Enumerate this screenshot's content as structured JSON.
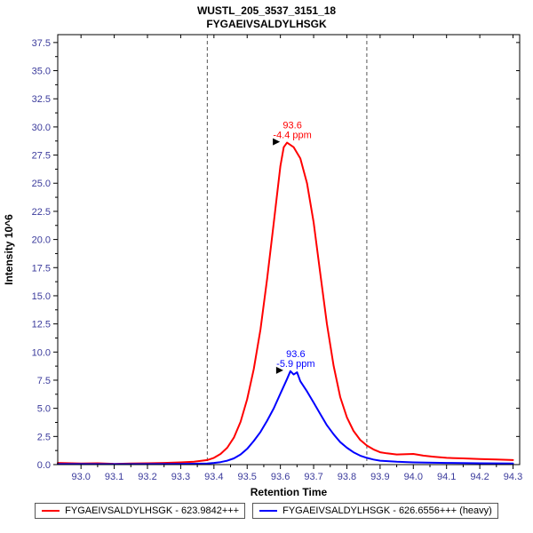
{
  "chart_data": {
    "type": "line",
    "title": "WUSTL_205_3537_3151_18",
    "subtitle": "FYGAEIVSALDYLHSGK",
    "xlabel": "Retention Time",
    "ylabel": "Intensity 10^6",
    "xlim": [
      92.93,
      94.32
    ],
    "ylim": [
      0,
      38.2
    ],
    "grid": false,
    "legend_position": "bottom",
    "tick_label_color": "#3b3b9c",
    "boundary_color": "#555555",
    "integration_boundaries": [
      93.38,
      93.86
    ],
    "x_ticks": [
      93.0,
      93.1,
      93.2,
      93.3,
      93.4,
      93.5,
      93.6,
      93.7,
      93.8,
      93.9,
      94.0,
      94.1,
      94.2,
      94.3
    ],
    "y_ticks": [
      0.0,
      2.5,
      5.0,
      7.5,
      10.0,
      12.5,
      15.0,
      17.5,
      20.0,
      22.5,
      25.0,
      27.5,
      30.0,
      32.5,
      35.0,
      37.5
    ],
    "series": [
      {
        "name": "FYGAEIVSALDYLHSGK - 623.9842+++",
        "color": "#ff0000",
        "annotation": {
          "x": 93.62,
          "y": 28.6,
          "rt_label": "93.6",
          "ppm_label": "-4.4 ppm"
        },
        "x": [
          92.93,
          93.0,
          93.05,
          93.1,
          93.15,
          93.2,
          93.25,
          93.3,
          93.34,
          93.38,
          93.4,
          93.42,
          93.44,
          93.46,
          93.48,
          93.5,
          93.52,
          93.54,
          93.56,
          93.58,
          93.6,
          93.61,
          93.62,
          93.64,
          93.66,
          93.68,
          93.7,
          93.72,
          93.74,
          93.76,
          93.78,
          93.8,
          93.82,
          93.84,
          93.86,
          93.88,
          93.9,
          93.92,
          93.95,
          94.0,
          94.03,
          94.06,
          94.1,
          94.15,
          94.2,
          94.25,
          94.3
        ],
        "y": [
          0.15,
          0.1,
          0.12,
          0.06,
          0.1,
          0.12,
          0.15,
          0.2,
          0.25,
          0.4,
          0.6,
          0.95,
          1.5,
          2.4,
          3.8,
          5.8,
          8.5,
          12.0,
          16.5,
          21.5,
          26.5,
          28.2,
          28.6,
          28.2,
          27.2,
          25.0,
          21.5,
          17.0,
          12.5,
          8.8,
          6.0,
          4.2,
          3.0,
          2.2,
          1.7,
          1.35,
          1.1,
          1.0,
          0.9,
          0.95,
          0.8,
          0.7,
          0.6,
          0.55,
          0.5,
          0.45,
          0.4
        ]
      },
      {
        "name": "FYGAEIVSALDYLHSGK - 626.6556+++ (heavy)",
        "color": "#0000ff",
        "annotation": {
          "x": 93.63,
          "y": 8.3,
          "rt_label": "93.6",
          "ppm_label": "-5.9 ppm"
        },
        "x": [
          92.93,
          93.0,
          93.1,
          93.2,
          93.3,
          93.38,
          93.4,
          93.42,
          93.44,
          93.46,
          93.48,
          93.5,
          93.52,
          93.54,
          93.56,
          93.58,
          93.6,
          93.62,
          93.63,
          93.64,
          93.65,
          93.66,
          93.68,
          93.7,
          93.72,
          93.74,
          93.76,
          93.78,
          93.8,
          93.82,
          93.84,
          93.86,
          93.88,
          93.9,
          93.95,
          94.0,
          94.1,
          94.2,
          94.3
        ],
        "y": [
          0.05,
          0.05,
          0.04,
          0.05,
          0.06,
          0.1,
          0.15,
          0.22,
          0.35,
          0.55,
          0.9,
          1.4,
          2.1,
          2.9,
          3.9,
          5.0,
          6.3,
          7.6,
          8.3,
          8.0,
          8.2,
          7.4,
          6.5,
          5.5,
          4.5,
          3.5,
          2.7,
          2.0,
          1.5,
          1.1,
          0.8,
          0.6,
          0.45,
          0.35,
          0.25,
          0.2,
          0.15,
          0.12,
          0.1
        ]
      }
    ]
  }
}
